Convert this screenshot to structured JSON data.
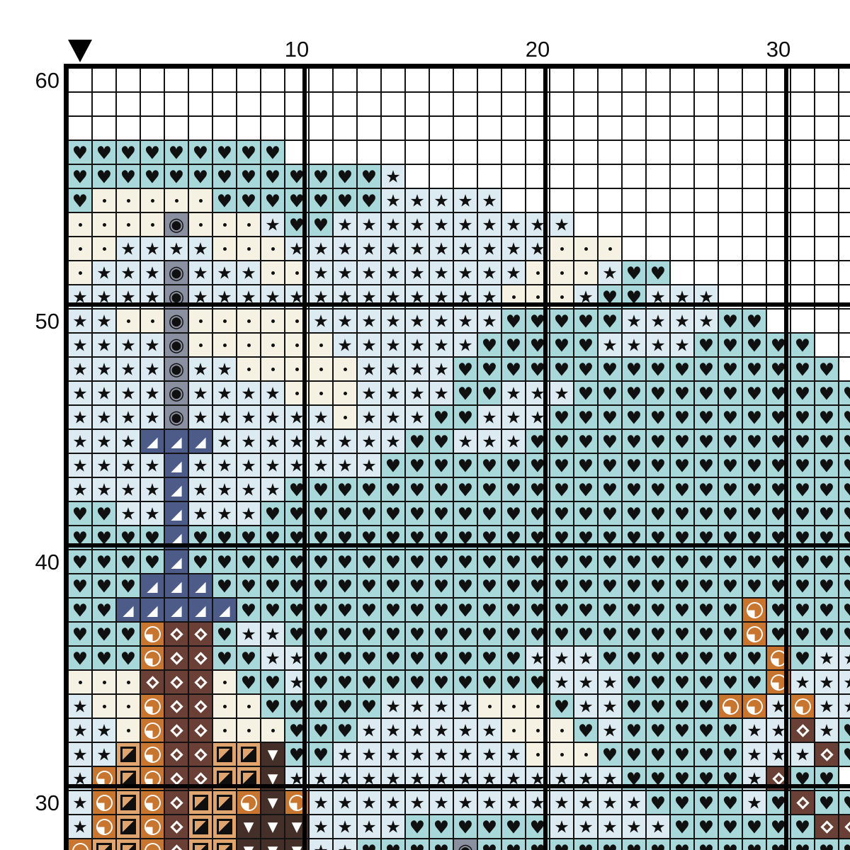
{
  "chart": {
    "kind": "cross-stitch-pattern-grid",
    "marker": {
      "col": 1,
      "shape": "down-triangle",
      "color": "#000000"
    },
    "axis": {
      "top": [
        {
          "col": 10,
          "label": "10"
        },
        {
          "col": 20,
          "label": "20"
        },
        {
          "col": 30,
          "label": "30"
        }
      ],
      "left": [
        {
          "row": 60,
          "label": "60"
        },
        {
          "row": 50,
          "label": "50"
        },
        {
          "row": 40,
          "label": "40"
        },
        {
          "row": 30,
          "label": "30"
        }
      ]
    },
    "palette": {
      "h": {
        "name": "heart-symbol",
        "bg": "#a9d8db",
        "fg": "#101010",
        "render": "glyph",
        "glyph": "♥",
        "size": 25
      },
      "s": {
        "name": "star-symbol",
        "bg": "#dceaf1",
        "fg": "#101010",
        "render": "glyph",
        "glyph": "★",
        "size": 24
      },
      "d": {
        "name": "small-dot-symbol",
        "bg": "#f6f2e3",
        "fg": "#101010",
        "render": "dot"
      },
      "g": {
        "name": "fisheye-symbol",
        "bg": "#8a90a0",
        "fg": "#101010",
        "render": "glyph",
        "glyph": "◉",
        "size": 26
      },
      "n": {
        "name": "lower-right-triangle-symbol",
        "bg": "#4c5b88",
        "fg": "#ffffff",
        "render": "glyph",
        "glyph": "◢",
        "size": 20
      },
      "o": {
        "name": "quarter-circle-symbol",
        "bg": "#c7752f",
        "fg": "#ffffff",
        "render": "pie"
      },
      "q": {
        "name": "half-square-diagonal-symbol",
        "bg": "#e0a56e",
        "fg": "#0f0f0f",
        "render": "half-square"
      },
      "b": {
        "name": "diamond-outline-symbol",
        "bg": "#693f36",
        "fg": "#ffffff",
        "render": "diamond"
      },
      "v": {
        "name": "down-triangle-symbol",
        "bg": "#443029",
        "fg": "#ffffff",
        "render": "glyph",
        "glyph": "▼",
        "size": 19
      },
      ".": {
        "name": "empty",
        "bg": "#ffffff",
        "render": "none"
      }
    },
    "grid": {
      "first_col": 1,
      "cols": 33,
      "rows": [
        {
          "row": 60,
          "cells": "................................."
        },
        {
          "row": 59,
          "cells": "................................."
        },
        {
          "row": 58,
          "cells": "................................."
        },
        {
          "row": 57,
          "cells": "hhhhhhhhh........................"
        },
        {
          "row": 56,
          "cells": "hhhhhhhhhhhhhs..................."
        },
        {
          "row": 55,
          "cells": "hdddddhhhhhhhsssss..............."
        },
        {
          "row": 54,
          "cells": "ddddgdddshhssssssssss............"
        },
        {
          "row": 53,
          "cells": "ddssssdddsssssssssssddd.........."
        },
        {
          "row": 52,
          "cells": "dsssgsssddsssssssssdddshh........"
        },
        {
          "row": 51,
          "cells": "ssssgsssssssssssssdddshhsss......"
        },
        {
          "row": 50,
          "cells": "ssddgdddddsssssssshhhhhsssshh...."
        },
        {
          "row": 49,
          "cells": "ssssgddddddsssssshhhhhsssshhhhh.."
        },
        {
          "row": 48,
          "cells": "ssssgssdddddsssshhhhhhhhhhhhhhhh."
        },
        {
          "row": 47,
          "cells": "ssssgssssdddsssshhssshhhhhhhhhhhh"
        },
        {
          "row": 46,
          "cells": "ssssgssssssdssshhssshhhhhhhhhhhhh"
        },
        {
          "row": 45,
          "cells": "sssnnnsssssssshhssshhhhhhhhhhhhhh"
        },
        {
          "row": 44,
          "cells": "ssssnsssssssshhhhhhhhhhhhhhhhhhhh"
        },
        {
          "row": 43,
          "cells": "ssssnsssshhhhhhhhhhhhhhhhhhhhhhhh"
        },
        {
          "row": 42,
          "cells": "hhssnssshhhhhhhhhhhhhhhhhhhhhhhhh"
        },
        {
          "row": 41,
          "cells": "hhhhnhhhhhhhhhhhhhhhhhhhhhhhhhhhh"
        },
        {
          "row": 40,
          "cells": "hhhhnhhhhhhhhhhhhhhhhhhhhhhhhhhhh"
        },
        {
          "row": 39,
          "cells": "hhhnnnhhhhhhhhhhhhhhhhhhhhhhhhhhh"
        },
        {
          "row": 38,
          "cells": "hhnnnnnhhhhhhhhhhhhhhhhhhhhhohhhh"
        },
        {
          "row": 37,
          "cells": "hhhobbhsshhhhhhhhhhhhhhhhhhhohhhh"
        },
        {
          "row": 36,
          "cells": "hhhobbhhsshhhhhhhhhssshhhhhhhohss"
        },
        {
          "row": 35,
          "cells": "dddbbbdhhshhhhhhhhhhssshhhhhhosss"
        },
        {
          "row": 34,
          "cells": "sddobbddhhhhhssssdddhsshhhhoososs"
        },
        {
          "row": 33,
          "cells": "ssdobbdddhhhssssssdddhshhhhhssbsh"
        },
        {
          "row": 32,
          "cells": "ssqobbqqvhhssssssssdddhhhhhhsssbh"
        },
        {
          "row": 31,
          "cells": "soqobbqqvsssssssssssssshhhhhsbhh."
        },
        {
          "row": 30,
          "cells": "soqobqqovosssssssssssssshhhhshbhh"
        },
        {
          "row": 29,
          "cells": "soqobqqvvvsssshhhhhhssssshhhhhhbb"
        },
        {
          "row": 28,
          "cells": "oqqobqqvvvsshhhhghhhhhhhhhhhhhhhh"
        }
      ]
    },
    "style": {
      "thin_line_color": "#131313",
      "thick_line_color": "#000000",
      "label_color": "#0d0d0d",
      "background": "#ffffff"
    }
  }
}
